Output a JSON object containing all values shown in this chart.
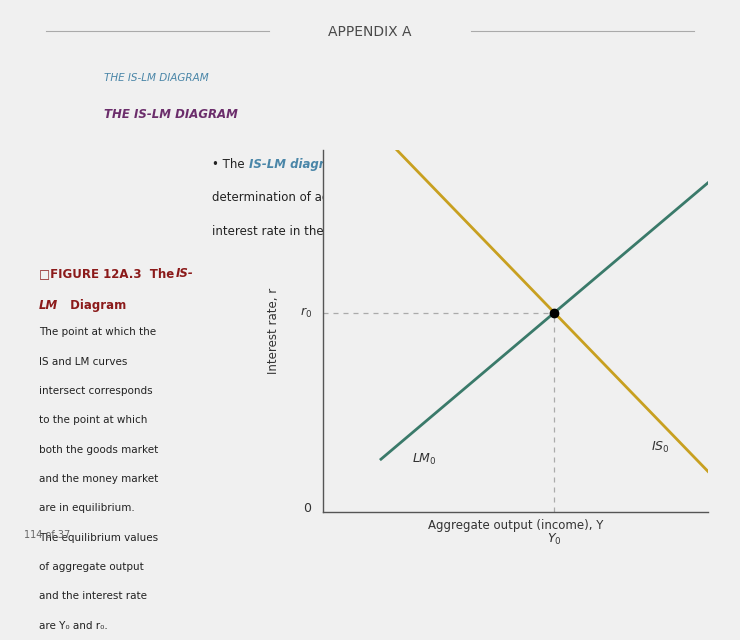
{
  "title": "APPENDIX A",
  "title_color": "#4a4a4a",
  "heading1": "THE IS-LM DIAGRAM",
  "heading1_color": "#4a86a8",
  "heading2": "THE IS-LM DIAGRAM",
  "heading2_color": "#6b2d6b",
  "figure_desc": "The point at which the\nIS and LM curves\nintersect corresponds\nto the point at which\nboth the goods market\nand the money market\nare in equilibrium.\nThe equilibrium values\nof aggregate output\nand the interest rate\nare Y₀ and r₀.",
  "page_number": "114 of 37",
  "lm_color": "#3a7a6a",
  "is_color": "#c8a020",
  "xlabel": "Aggregate output (income), Y",
  "ylabel": "Interest rate, r",
  "background_color": "#f0f0f0"
}
